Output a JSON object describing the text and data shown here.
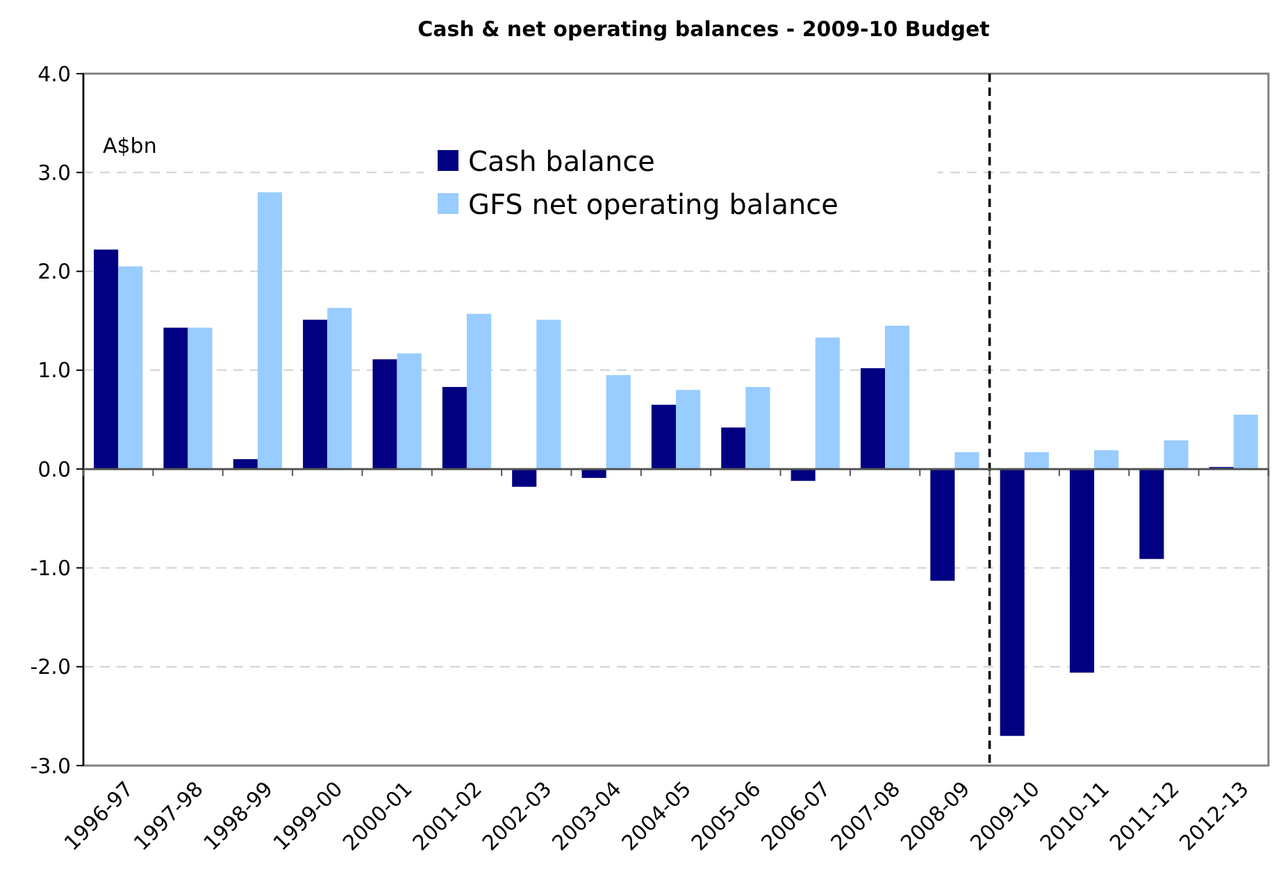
{
  "chart_data": {
    "type": "bar",
    "title": "Cash & net operating balances - 2009-10 Budget",
    "ylabel": "A$bn",
    "categories": [
      "1996-97",
      "1997-98",
      "1998-99",
      "1999-00",
      "2000-01",
      "2001-02",
      "2002-03",
      "2003-04",
      "2004-05",
      "2005-06",
      "2006-07",
      "2007-08",
      "2008-09",
      "2009-10",
      "2010-11",
      "2011-12",
      "2012-13"
    ],
    "series": [
      {
        "name": "Cash balance",
        "color": "#000080",
        "values": [
          2.22,
          1.43,
          0.1,
          1.51,
          1.11,
          0.83,
          -0.18,
          -0.09,
          0.65,
          0.42,
          -0.12,
          1.02,
          -1.13,
          -2.7,
          -2.06,
          -0.91,
          0.02
        ]
      },
      {
        "name": "GFS net operating balance",
        "color": "#99ccff",
        "values": [
          2.05,
          1.43,
          2.8,
          1.63,
          1.17,
          1.57,
          1.51,
          0.95,
          0.8,
          0.83,
          1.33,
          1.45,
          0.17,
          0.17,
          0.19,
          0.29,
          0.55
        ]
      }
    ],
    "ylim": [
      -3,
      4
    ],
    "yticks": [
      {
        "value": -3,
        "label": "-3.0"
      },
      {
        "value": -2,
        "label": "-2.0"
      },
      {
        "value": -1,
        "label": "-1.0"
      },
      {
        "value": 0,
        "label": "0.0"
      },
      {
        "value": 1,
        "label": "1.0"
      },
      {
        "value": 2,
        "label": "2.0"
      },
      {
        "value": 3,
        "label": "3.0"
      },
      {
        "value": 4,
        "label": "4.0"
      }
    ],
    "grid": "y",
    "legend": "top",
    "ref_lines": [
      {
        "axis": "x",
        "value": "2009-10",
        "color": "#000000",
        "line_style": "dashed"
      }
    ]
  }
}
